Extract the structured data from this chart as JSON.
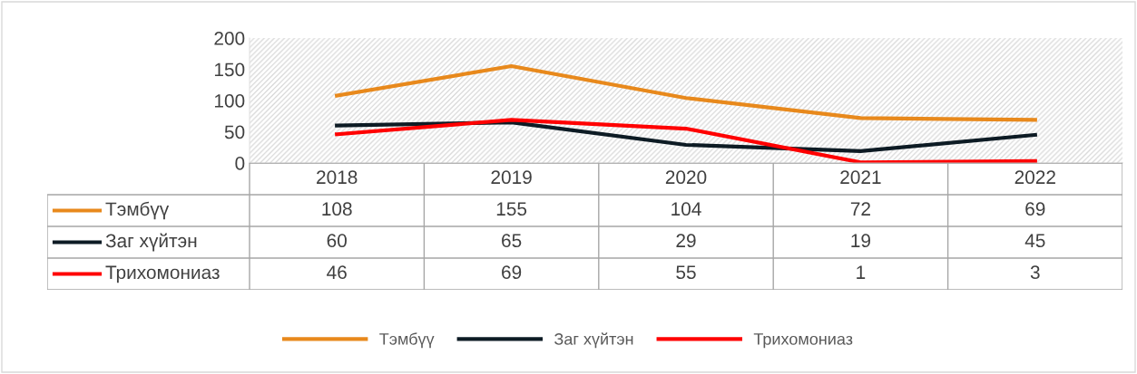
{
  "chart_data": {
    "type": "line",
    "categories": [
      "2018",
      "2019",
      "2020",
      "2021",
      "2022"
    ],
    "series": [
      {
        "name": "Тэмбүү",
        "color": "#e8891c",
        "values": [
          108,
          155,
          104,
          72,
          69
        ]
      },
      {
        "name": "Заг хүйтэн",
        "color": "#0d1b24",
        "values": [
          60,
          65,
          29,
          19,
          45
        ]
      },
      {
        "name": "Трихомониаз",
        "color": "#ff0000",
        "values": [
          46,
          69,
          55,
          1,
          3
        ]
      }
    ],
    "ylim": [
      0,
      200
    ],
    "yticks": [
      0,
      50,
      100,
      150,
      200
    ],
    "grid": false,
    "legend": "bottom",
    "data_labels": true,
    "marker": "none",
    "line_style": "solid"
  }
}
